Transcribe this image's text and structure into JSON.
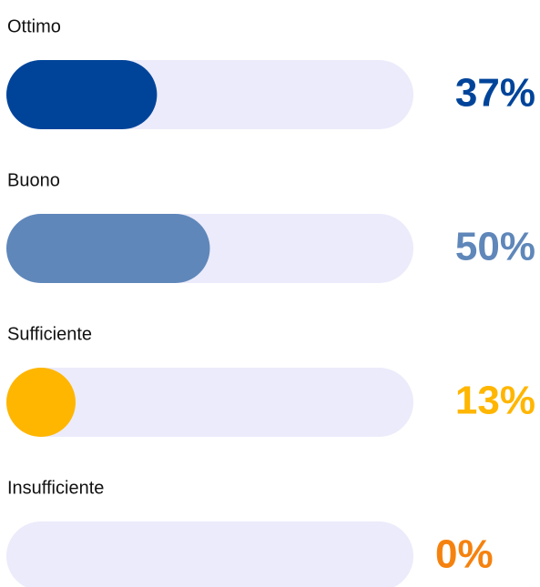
{
  "chart_data": {
    "type": "bar",
    "orientation": "horizontal",
    "categories": [
      "Ottimo",
      "Buono",
      "Sufficiente",
      "Insufficiente"
    ],
    "values": [
      37,
      50,
      13,
      0
    ],
    "value_labels": [
      "37%",
      "50%",
      "13%",
      "0%"
    ],
    "colors": [
      "#00449a",
      "#5f87ba",
      "#ffb600",
      "#f5820f"
    ],
    "track_color": "#ebebfb",
    "xlim": [
      0,
      100
    ]
  }
}
